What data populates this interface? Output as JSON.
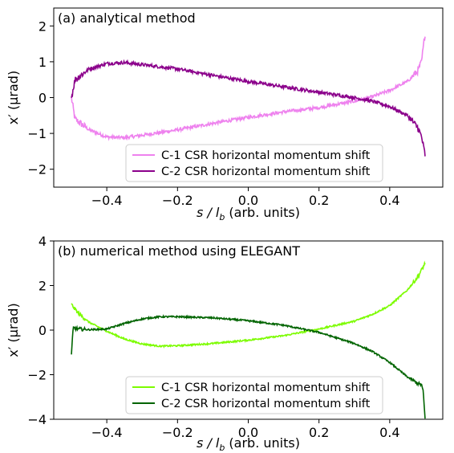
{
  "chart_data": [
    {
      "type": "line",
      "title": "(a) analytical method",
      "xlabel_main": "s / l",
      "xlabel_sub": "b",
      "xlabel_suffix": " (arb. units)",
      "ylabel": "x′ (µrad)",
      "xlim": [
        -0.55,
        0.55
      ],
      "ylim": [
        -2.5,
        2.5
      ],
      "xticks": [
        -0.4,
        -0.2,
        0.0,
        0.2,
        0.4
      ],
      "xtick_labels": [
        "−0.4",
        "−0.2",
        "0.0",
        "0.2",
        "0.4"
      ],
      "yticks": [
        -2,
        -1,
        0,
        1,
        2
      ],
      "ytick_labels": [
        "−2",
        "−1",
        "0",
        "1",
        "2"
      ],
      "grid": false,
      "legend_position": "bottom-center",
      "series": [
        {
          "name": "C-1 CSR horizontal momentum shift",
          "color": "#ee82ee",
          "x": [
            -0.5,
            -0.49,
            -0.45,
            -0.4,
            -0.35,
            -0.3,
            -0.2,
            -0.1,
            0.0,
            0.1,
            0.2,
            0.3,
            0.35,
            0.4,
            0.45,
            0.48,
            0.49,
            0.5
          ],
          "y": [
            0.0,
            -0.6,
            -0.9,
            -1.1,
            -1.12,
            -1.05,
            -0.9,
            -0.72,
            -0.55,
            -0.4,
            -0.28,
            -0.1,
            0.02,
            0.2,
            0.45,
            0.75,
            1.0,
            1.8
          ]
        },
        {
          "name": "C-2 CSR horizontal momentum shift",
          "color": "#8b008b",
          "x": [
            -0.5,
            -0.49,
            -0.45,
            -0.4,
            -0.35,
            -0.3,
            -0.2,
            -0.1,
            0.0,
            0.1,
            0.2,
            0.3,
            0.35,
            0.4,
            0.45,
            0.48,
            0.49,
            0.5
          ],
          "y": [
            0.0,
            0.5,
            0.8,
            0.95,
            0.98,
            0.92,
            0.8,
            0.62,
            0.45,
            0.3,
            0.15,
            0.0,
            -0.1,
            -0.25,
            -0.5,
            -0.85,
            -1.1,
            -1.6
          ]
        }
      ]
    },
    {
      "type": "line",
      "title": "(b) numerical method using ELEGANT",
      "xlabel_main": "s / l",
      "xlabel_sub": "b",
      "xlabel_suffix": " (arb. units)",
      "ylabel": "x′ (µrad)",
      "xlim": [
        -0.55,
        0.55
      ],
      "ylim": [
        -4,
        4
      ],
      "xticks": [
        -0.4,
        -0.2,
        0.0,
        0.2,
        0.4
      ],
      "xtick_labels": [
        "−0.4",
        "−0.2",
        "0.0",
        "0.2",
        "0.4"
      ],
      "yticks": [
        -4,
        -2,
        0,
        2,
        4
      ],
      "ytick_labels": [
        "−4",
        "−2",
        "0",
        "2",
        "4"
      ],
      "grid": false,
      "legend_position": "bottom-center",
      "series": [
        {
          "name": "C-1 CSR horizontal momentum shift",
          "color": "#7cfc00",
          "x": [
            -0.5,
            -0.48,
            -0.45,
            -0.4,
            -0.35,
            -0.3,
            -0.25,
            -0.2,
            -0.1,
            0.0,
            0.1,
            0.2,
            0.3,
            0.35,
            0.4,
            0.45,
            0.48,
            0.5
          ],
          "y": [
            1.15,
            0.75,
            0.35,
            -0.05,
            -0.4,
            -0.62,
            -0.72,
            -0.7,
            -0.6,
            -0.45,
            -0.25,
            0.05,
            0.4,
            0.7,
            1.1,
            1.8,
            2.4,
            3.0
          ]
        },
        {
          "name": "C-2 CSR horizontal momentum shift",
          "color": "#006400",
          "x": [
            -0.5,
            -0.495,
            -0.48,
            -0.45,
            -0.4,
            -0.35,
            -0.3,
            -0.25,
            -0.2,
            -0.1,
            0.0,
            0.1,
            0.2,
            0.3,
            0.35,
            0.4,
            0.45,
            0.48,
            0.49,
            0.495,
            0.5
          ],
          "y": [
            -1.1,
            0.1,
            0.05,
            0.02,
            0.05,
            0.3,
            0.5,
            0.6,
            0.6,
            0.55,
            0.42,
            0.22,
            -0.1,
            -0.6,
            -0.95,
            -1.45,
            -2.1,
            -2.4,
            -2.45,
            -2.8,
            -4.0
          ]
        }
      ]
    }
  ]
}
